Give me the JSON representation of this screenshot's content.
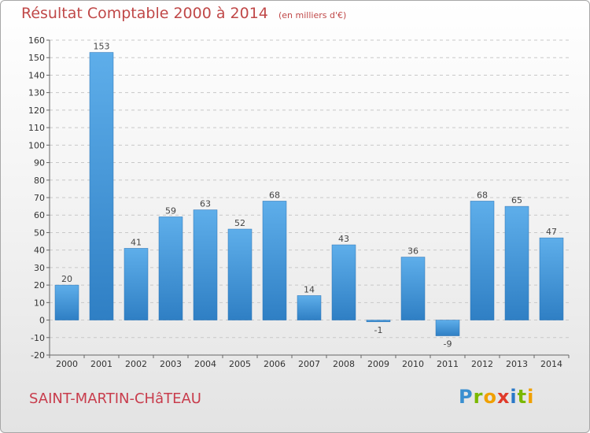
{
  "header": {
    "title": "Résultat Comptable 2000 à 2014",
    "unit": "(en milliers d'€)"
  },
  "footer": {
    "commune": "SAINT-MARTIN-CHâTEAU",
    "logo": "Proxiti"
  },
  "colors": {
    "bar": "#4a9de0",
    "bar_dark": "#2f7fc4",
    "title": "#c04848",
    "grid": "#c8c8c8"
  },
  "chart_data": {
    "type": "bar",
    "title": "Résultat Comptable 2000 à 2014",
    "subtitle": "(en milliers d'€)",
    "xlabel": "",
    "ylabel": "",
    "categories": [
      "2000",
      "2001",
      "2002",
      "2003",
      "2004",
      "2005",
      "2006",
      "2007",
      "2008",
      "2009",
      "2010",
      "2011",
      "2012",
      "2013",
      "2014"
    ],
    "values": [
      20,
      153,
      41,
      59,
      63,
      52,
      68,
      14,
      43,
      -1,
      36,
      -9,
      68,
      65,
      47
    ],
    "ylim": [
      -20,
      160
    ],
    "yticks": [
      -20,
      -10,
      0,
      10,
      20,
      30,
      40,
      50,
      60,
      70,
      80,
      90,
      100,
      110,
      120,
      130,
      140,
      150,
      160
    ],
    "grid": true,
    "legend": "none"
  }
}
